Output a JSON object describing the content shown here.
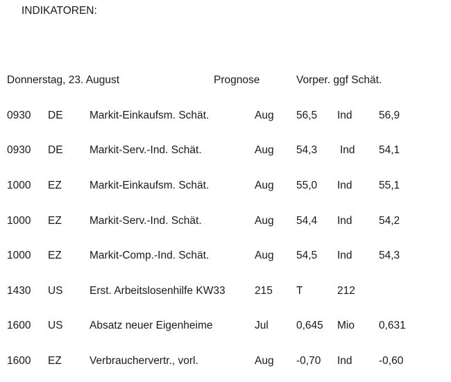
{
  "title": "INDIKATOREN:",
  "header": {
    "date": "Donnerstag, 23. August",
    "prognose": "Prognose",
    "vorper": "Vorper. ggf Schät."
  },
  "rows": [
    {
      "time": "0930",
      "region": "DE",
      "indicator": "Markit-Einkaufsm. Schät.",
      "period": "Aug",
      "forecast": "56,5",
      "unit": "Ind",
      "previous": "56,9"
    },
    {
      "time": "0930",
      "region": "DE",
      "indicator": "Markit-Serv.-Ind. Schät.",
      "period": "Aug",
      "forecast": "54,3",
      "unit": "Ind",
      "previous": "54,1"
    },
    {
      "time": "1000",
      "region": "EZ",
      "indicator": "Markit-Einkaufsm. Schät.",
      "period": "Aug",
      "forecast": "55,0",
      "unit": "Ind",
      "previous": "55,1"
    },
    {
      "time": "1000",
      "region": "EZ",
      "indicator": "Markit-Serv.-Ind. Schät.",
      "period": "Aug",
      "forecast": "54,4",
      "unit": "Ind",
      "previous": "54,2"
    },
    {
      "time": "1000",
      "region": "EZ",
      "indicator": "Markit-Comp.-Ind. Schät.",
      "period": "Aug",
      "forecast": "54,5",
      "unit": "Ind",
      "previous": "54,3"
    },
    {
      "time": "1430",
      "region": "US",
      "indicator": "Erst. Arbeitslosenhilfe KW33",
      "period": "215",
      "forecast": "T",
      "unit": "212",
      "previous": ""
    },
    {
      "time": "1600",
      "region": "US",
      "indicator": "Absatz neuer Eigenheime",
      "period": "Jul",
      "forecast": "0,645",
      "unit": "Mio",
      "previous": "0,631"
    },
    {
      "time": "1600",
      "region": "EZ",
      "indicator": "Verbrauchervertr., vorl.",
      "period": "Aug",
      "forecast": "-0,70",
      "unit": "Ind",
      "previous": "-0,60"
    }
  ]
}
